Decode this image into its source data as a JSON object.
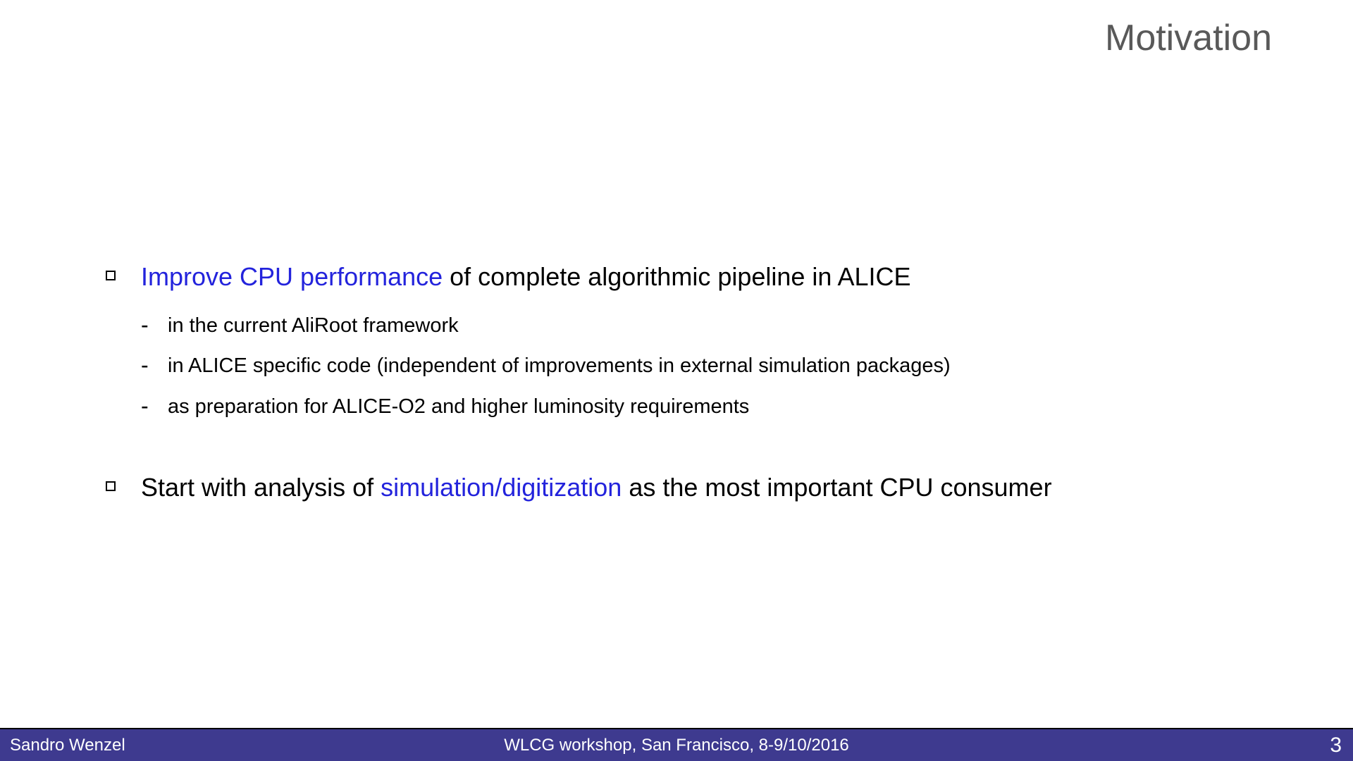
{
  "title": "Motivation",
  "colors": {
    "title": "#595959",
    "highlight": "#2323dc",
    "text": "#000000",
    "footer_bg": "#3e3a8f",
    "footer_text": "#ffffff"
  },
  "typography": {
    "title_fontsize": 52,
    "bullet_fontsize": 36,
    "subbullet_fontsize": 29,
    "footer_fontsize": 24
  },
  "bullets": [
    {
      "parts": [
        {
          "text": "Improve CPU performance",
          "style": "highlight"
        },
        {
          "text": " of complete algorithmic pipeline in ALICE",
          "style": "normal"
        }
      ],
      "sub_items": [
        "in the current AliRoot framework",
        "in ALICE specific code (independent of improvements in external simulation packages)",
        "as preparation for ALICE-O2 and higher luminosity requirements"
      ]
    },
    {
      "parts": [
        {
          "text": "Start with analysis of ",
          "style": "normal"
        },
        {
          "text": "simulation/digitization",
          "style": "highlight"
        },
        {
          "text": " as the most important CPU consumer",
          "style": "normal"
        }
      ],
      "sub_items": []
    }
  ],
  "footer": {
    "author": "Sandro Wenzel",
    "event": "WLCG workshop,  San Francisco, 8-9/10/2016",
    "page": "3"
  }
}
